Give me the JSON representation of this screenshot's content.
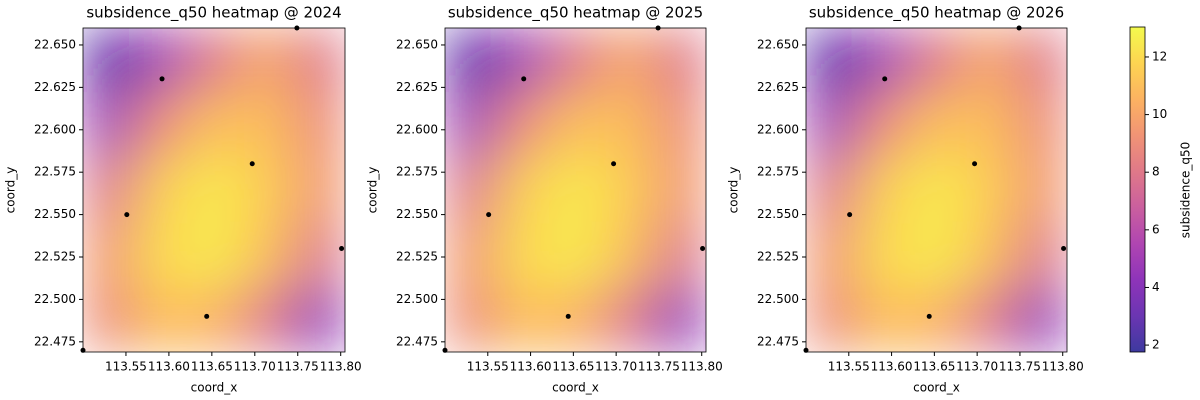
{
  "chart_data": [
    {
      "type": "heatmap",
      "title": "subsidence_q50 heatmap @ 2024",
      "xlabel": "coord_x",
      "ylabel": "coord_y",
      "xlim": [
        113.5,
        113.805
      ],
      "ylim": [
        22.469,
        22.66
      ],
      "xticks": [
        113.55,
        {
          "value": 113.6,
          "label": "113.60"
        },
        113.65,
        {
          "value": 113.7,
          "label": "113.70"
        },
        113.75,
        {
          "value": 113.8,
          "label": "113.80"
        }
      ],
      "yticks": [
        22.475,
        {
          "value": 22.5,
          "label": "22.500"
        },
        22.525,
        {
          "value": 22.55,
          "label": "22.550"
        },
        22.575,
        {
          "value": 22.6,
          "label": "22.600"
        },
        22.625,
        {
          "value": 22.65,
          "label": "22.650"
        }
      ],
      "z": [
        [
          2.5,
          5,
          8,
          10,
          8
        ],
        [
          5,
          9,
          11,
          11,
          9
        ],
        [
          8,
          11.5,
          12.5,
          11.5,
          9.5
        ],
        [
          9.5,
          12,
          12.5,
          11,
          8
        ],
        [
          9,
          11,
          10.5,
          8,
          4.5
        ]
      ],
      "points": {
        "x": [
          113.5,
          113.592,
          113.749,
          113.697,
          113.551,
          113.801,
          113.644
        ],
        "y": [
          22.47,
          22.63,
          22.66,
          22.58,
          22.55,
          22.53,
          22.49
        ],
        "color": "#000000"
      }
    },
    {
      "type": "heatmap",
      "title": "subsidence_q50 heatmap @ 2025",
      "xlabel": "coord_x",
      "ylabel": "coord_y",
      "xlim": [
        113.5,
        113.805
      ],
      "ylim": [
        22.469,
        22.66
      ],
      "xticks": [
        113.55,
        {
          "value": 113.6,
          "label": "113.60"
        },
        113.65,
        {
          "value": 113.7,
          "label": "113.70"
        },
        113.75,
        {
          "value": 113.8,
          "label": "113.80"
        }
      ],
      "yticks": [
        22.475,
        {
          "value": 22.5,
          "label": "22.500"
        },
        22.525,
        {
          "value": 22.55,
          "label": "22.550"
        },
        22.575,
        {
          "value": 22.6,
          "label": "22.600"
        },
        22.625,
        {
          "value": 22.65,
          "label": "22.650"
        }
      ],
      "z": [
        [
          2.5,
          5,
          8,
          10,
          8
        ],
        [
          5,
          9,
          11,
          11,
          9
        ],
        [
          8,
          11.5,
          12.5,
          11.5,
          9.5
        ],
        [
          9.5,
          12,
          12.5,
          11,
          8
        ],
        [
          9,
          11,
          10.5,
          8,
          4.5
        ]
      ],
      "points": {
        "x": [
          113.5,
          113.592,
          113.749,
          113.697,
          113.551,
          113.801,
          113.644
        ],
        "y": [
          22.47,
          22.63,
          22.66,
          22.58,
          22.55,
          22.53,
          22.49
        ],
        "color": "#000000"
      }
    },
    {
      "type": "heatmap",
      "title": "subsidence_q50 heatmap @ 2026",
      "xlabel": "coord_x",
      "ylabel": "coord_y",
      "xlim": [
        113.5,
        113.805
      ],
      "ylim": [
        22.469,
        22.66
      ],
      "xticks": [
        113.55,
        {
          "value": 113.6,
          "label": "113.60"
        },
        113.65,
        {
          "value": 113.7,
          "label": "113.70"
        },
        113.75,
        {
          "value": 113.8,
          "label": "113.80"
        }
      ],
      "yticks": [
        22.475,
        {
          "value": 22.5,
          "label": "22.500"
        },
        22.525,
        {
          "value": 22.55,
          "label": "22.550"
        },
        22.575,
        {
          "value": 22.6,
          "label": "22.600"
        },
        22.625,
        {
          "value": 22.65,
          "label": "22.650"
        }
      ],
      "z": [
        [
          2.5,
          5,
          8,
          10,
          8
        ],
        [
          5,
          9,
          11,
          11,
          9
        ],
        [
          8,
          11.5,
          12.5,
          11.5,
          9.5
        ],
        [
          9.5,
          12,
          12.5,
          11,
          8
        ],
        [
          9,
          11,
          10.5,
          8,
          4.5
        ]
      ],
      "points": {
        "x": [
          113.5,
          113.592,
          113.749,
          113.697,
          113.551,
          113.801,
          113.644
        ],
        "y": [
          22.47,
          22.63,
          22.66,
          22.58,
          22.55,
          22.53,
          22.49
        ],
        "color": "#000000"
      }
    },
    {
      "type": "colorbar",
      "label": "subsidence_q50",
      "clim": [
        1.76,
        13.04
      ],
      "ticks": [
        2,
        4,
        6,
        8,
        10,
        12
      ],
      "colormap": [
        "#0d0887",
        "#46039f",
        "#7201a8",
        "#9c179e",
        "#bd3786",
        "#d8576b",
        "#ed7953",
        "#fb9f3a",
        "#fdca26",
        "#f0f921"
      ],
      "alpha": 0.8
    }
  ]
}
